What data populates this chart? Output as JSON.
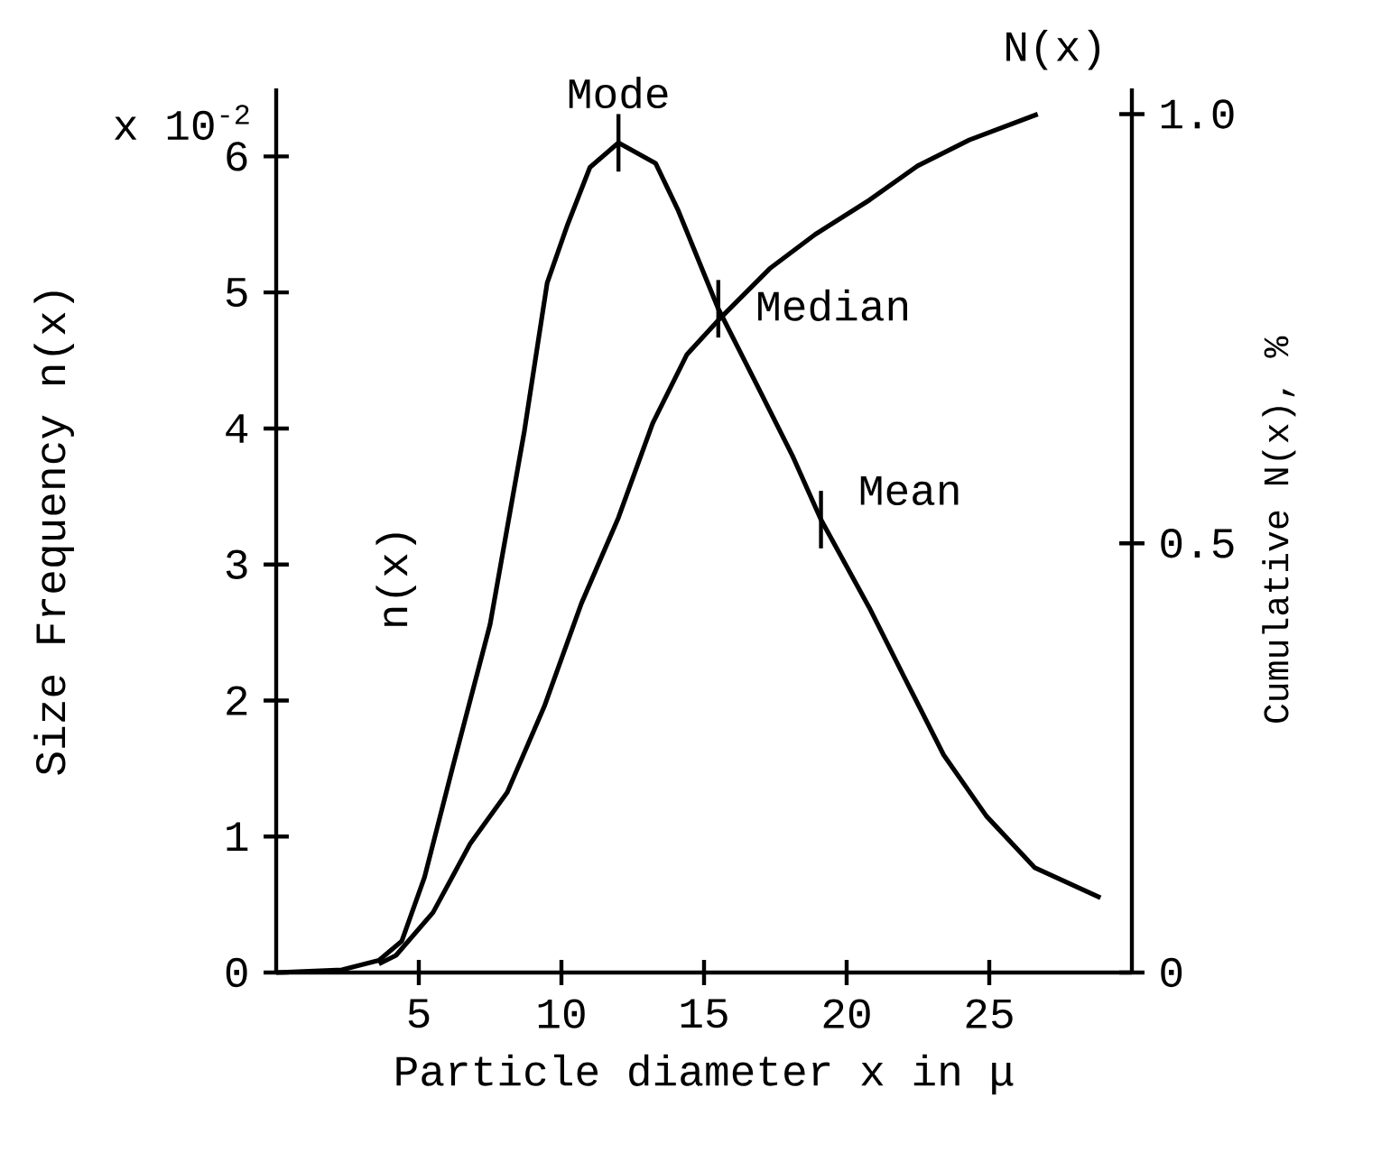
{
  "chart_data": {
    "type": "line",
    "xlabel": "Particle diameter x in μ",
    "ylabel": "Size Frequency n(x)",
    "y2label": "Cumulative N(x), %",
    "xlim": [
      0,
      30
    ],
    "xticks": [
      5,
      10,
      15,
      20,
      25
    ],
    "ylim": [
      0,
      6.5
    ],
    "yticks": [
      0,
      1,
      2,
      3,
      4,
      5,
      6
    ],
    "y2lim": [
      0,
      1.03
    ],
    "y2ticks": [
      0,
      0.5,
      {
        "value": 1,
        "label": "1.0"
      }
    ],
    "series": [
      {
        "name": "n(x)",
        "color": "#000000",
        "x": [
          0,
          2.3,
          3.6,
          4.4,
          5.2,
          6.2,
          7.5,
          8.7,
          9.5,
          10.2,
          11.0,
          12.0,
          13.3,
          14.1,
          15.5,
          16.9,
          18.1,
          19.1,
          20.8,
          22.0,
          23.4,
          24.9,
          26.6,
          28.9
        ],
        "values": [
          0,
          0.02,
          0.09,
          0.23,
          0.7,
          1.52,
          2.56,
          3.98,
          5.07,
          5.49,
          5.92,
          6.1,
          5.95,
          5.6,
          4.88,
          4.3,
          3.8,
          3.33,
          2.68,
          2.18,
          1.6,
          1.15,
          0.77,
          0.55
        ]
      },
      {
        "name": "N(x)",
        "color": "#000000",
        "axis": "y2",
        "x": [
          3.6,
          4.2,
          5.5,
          6.8,
          8.1,
          9.4,
          10.7,
          12.0,
          13.2,
          14.4,
          15.5,
          17.3,
          18.9,
          20.8,
          22.5,
          24.3,
          26.7
        ],
        "values": [
          0.01,
          0.02,
          0.07,
          0.15,
          0.21,
          0.31,
          0.43,
          0.53,
          0.64,
          0.72,
          0.76,
          0.82,
          0.86,
          0.9,
          0.94,
          0.97,
          1.0
        ]
      }
    ],
    "annotations": [
      {
        "text": "Mode",
        "x": 12,
        "y": 6.1
      },
      {
        "text": "Median",
        "x": 15.5,
        "y": 4.88
      },
      {
        "text": "Mean",
        "x": 19.1,
        "y": 3.33
      },
      "x 10$^{-2}$"
    ],
    "marker": "none",
    "line_style": "solid",
    "legend": false,
    "grid": false
  }
}
